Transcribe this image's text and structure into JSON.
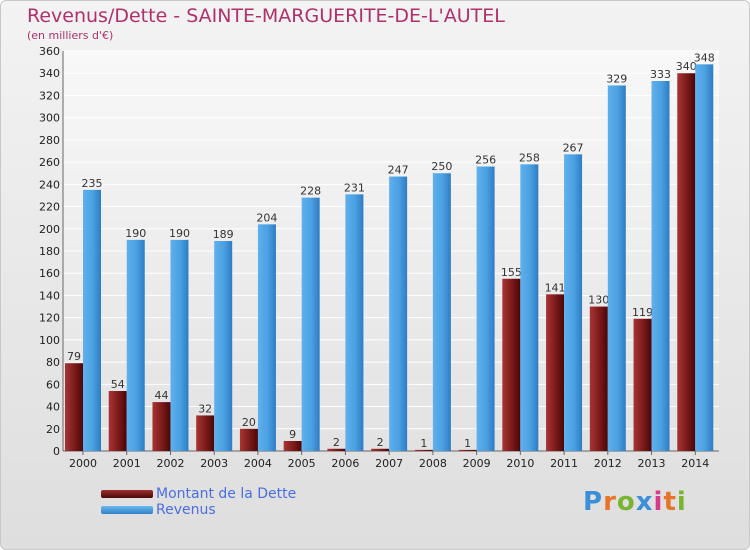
{
  "chart_data": {
    "type": "bar",
    "title": "Revenus/Dette - SAINTE-MARGUERITE-DE-L'AUTEL",
    "subtitle": "(en milliers d'€)",
    "categories": [
      "2000",
      "2001",
      "2002",
      "2003",
      "2004",
      "2005",
      "2006",
      "2007",
      "2008",
      "2009",
      "2010",
      "2011",
      "2012",
      "2013",
      "2014"
    ],
    "series": [
      {
        "name": "Montant de la Dette",
        "color": "#7a1a1a",
        "values": [
          79,
          54,
          44,
          32,
          20,
          9,
          2,
          2,
          1,
          1,
          155,
          141,
          130,
          119,
          340
        ],
        "labels": [
          "79",
          "54",
          "44",
          "32",
          "20",
          "9",
          "2",
          "2",
          "1",
          "1",
          "155",
          "141",
          "130",
          "119",
          "340"
        ]
      },
      {
        "name": "Revenus",
        "color": "#4aa0e0",
        "values": [
          235,
          190,
          190,
          189,
          204,
          228,
          231,
          247,
          250,
          256,
          258,
          267,
          329,
          333,
          348
        ],
        "labels": [
          "235",
          "190",
          "190",
          "189",
          "204",
          "228",
          "231",
          "247",
          "250",
          "256",
          "258",
          "267",
          "329",
          "333",
          "348"
        ]
      }
    ],
    "ylim": [
      0,
      360
    ],
    "yticks": [
      "0",
      "20",
      "40",
      "60",
      "80",
      "100",
      "120",
      "140",
      "160",
      "180",
      "200",
      "220",
      "240",
      "260",
      "280",
      "300",
      "320",
      "340",
      "360"
    ],
    "grid": true,
    "legend": "bottom-left"
  },
  "logo": {
    "text": "Proxiti",
    "colors": [
      "#3a8fd8",
      "#e8742a",
      "#7ab531",
      "#3a8fd8",
      "#d83a8a",
      "#e8742a",
      "#7ab531"
    ]
  }
}
